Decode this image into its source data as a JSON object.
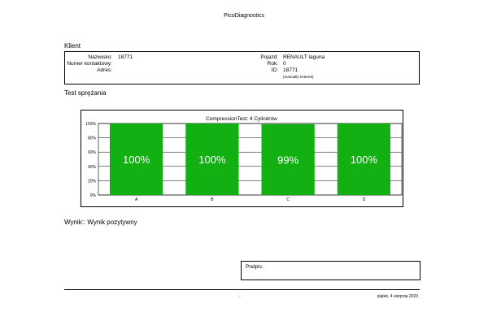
{
  "app": {
    "title": "PicoDiagnostics"
  },
  "client": {
    "heading": "Klient",
    "fields_left": [
      {
        "label": "Nazwisko:",
        "value": "18771"
      },
      {
        "label": "Numer kontaktowy:",
        "value": ""
      },
      {
        "label": "Adres:",
        "value": ""
      }
    ],
    "fields_right": [
      {
        "label": "Pojazd:",
        "value": "RENAULT laguna"
      },
      {
        "label": "Rok:",
        "value": "0"
      },
      {
        "label": "ID:",
        "value": "18771"
      }
    ],
    "id_note": "(manually entered)"
  },
  "test": {
    "heading": "Test sprężania"
  },
  "chart_data": {
    "type": "bar",
    "title": "CompressionTest: 4 Cylindrów",
    "categories": [
      "A",
      "B",
      "C",
      "D"
    ],
    "values": [
      100,
      100,
      99,
      100
    ],
    "value_labels": [
      "100%",
      "100%",
      "99%",
      "100%"
    ],
    "y_ticks": [
      "0%",
      "20%",
      "40%",
      "60%",
      "80%",
      "100%"
    ],
    "ylim": [
      0,
      100
    ],
    "bar_color": "#12b012",
    "grid": true
  },
  "result": {
    "text": "Wynik:: Wynik pozytywny"
  },
  "signature": {
    "label": "Podpis:"
  },
  "footer": {
    "center": "-",
    "date": "piątek, 4 sierpnia 2023"
  }
}
